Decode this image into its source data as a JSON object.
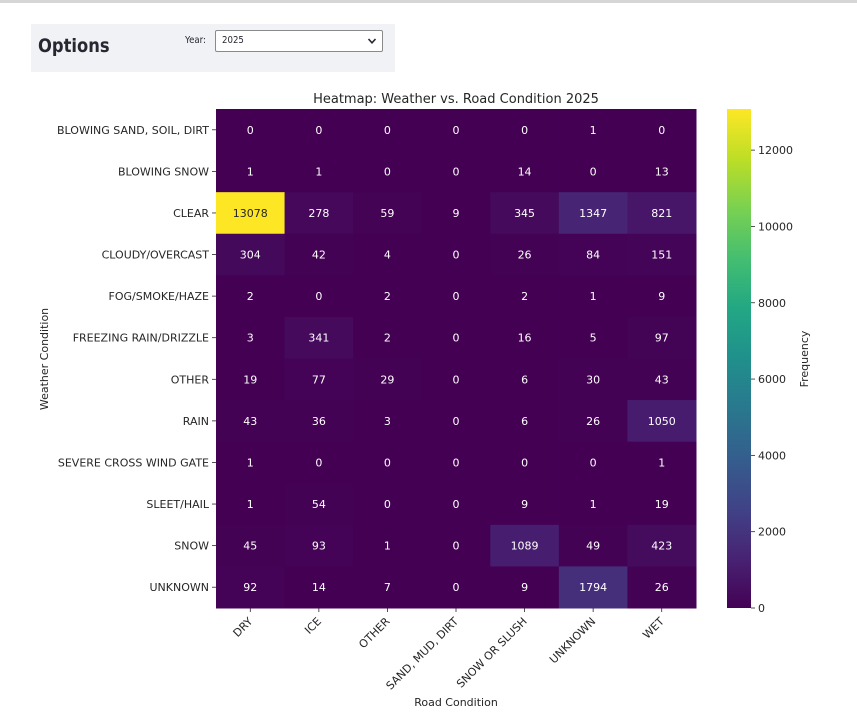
{
  "options": {
    "title": "Options",
    "year_label": "Year:",
    "year_value": "2025"
  },
  "chart_data": {
    "type": "heatmap",
    "title": "Heatmap: Weather vs. Road Condition 2025",
    "xlabel": "Road Condition",
    "ylabel": "Weather Condition",
    "colorbar_label": "Frequency",
    "colormap": "viridis",
    "vmin": 0,
    "vmax": 13078,
    "colorbar_ticks": [
      0,
      2000,
      4000,
      6000,
      8000,
      10000,
      12000
    ],
    "x_categories": [
      "DRY",
      "ICE",
      "OTHER",
      "SAND, MUD, DIRT",
      "SNOW OR SLUSH",
      "UNKNOWN",
      "WET"
    ],
    "y_categories": [
      "BLOWING SAND, SOIL, DIRT",
      "BLOWING SNOW",
      "CLEAR",
      "CLOUDY/OVERCAST",
      "FOG/SMOKE/HAZE",
      "FREEZING RAIN/DRIZZLE",
      "OTHER",
      "RAIN",
      "SEVERE CROSS WIND GATE",
      "SLEET/HAIL",
      "SNOW",
      "UNKNOWN"
    ],
    "values": [
      [
        0,
        0,
        0,
        0,
        0,
        1,
        0
      ],
      [
        1,
        1,
        0,
        0,
        14,
        0,
        13
      ],
      [
        13078,
        278,
        59,
        9,
        345,
        1347,
        821
      ],
      [
        304,
        42,
        4,
        0,
        26,
        84,
        151
      ],
      [
        2,
        0,
        2,
        0,
        2,
        1,
        9
      ],
      [
        3,
        341,
        2,
        0,
        16,
        5,
        97
      ],
      [
        19,
        77,
        29,
        0,
        6,
        30,
        43
      ],
      [
        43,
        36,
        3,
        0,
        6,
        26,
        1050
      ],
      [
        1,
        0,
        0,
        0,
        0,
        0,
        1
      ],
      [
        1,
        54,
        0,
        0,
        9,
        1,
        19
      ],
      [
        45,
        93,
        1,
        0,
        1089,
        49,
        423
      ],
      [
        92,
        14,
        7,
        0,
        9,
        1794,
        26
      ]
    ]
  }
}
